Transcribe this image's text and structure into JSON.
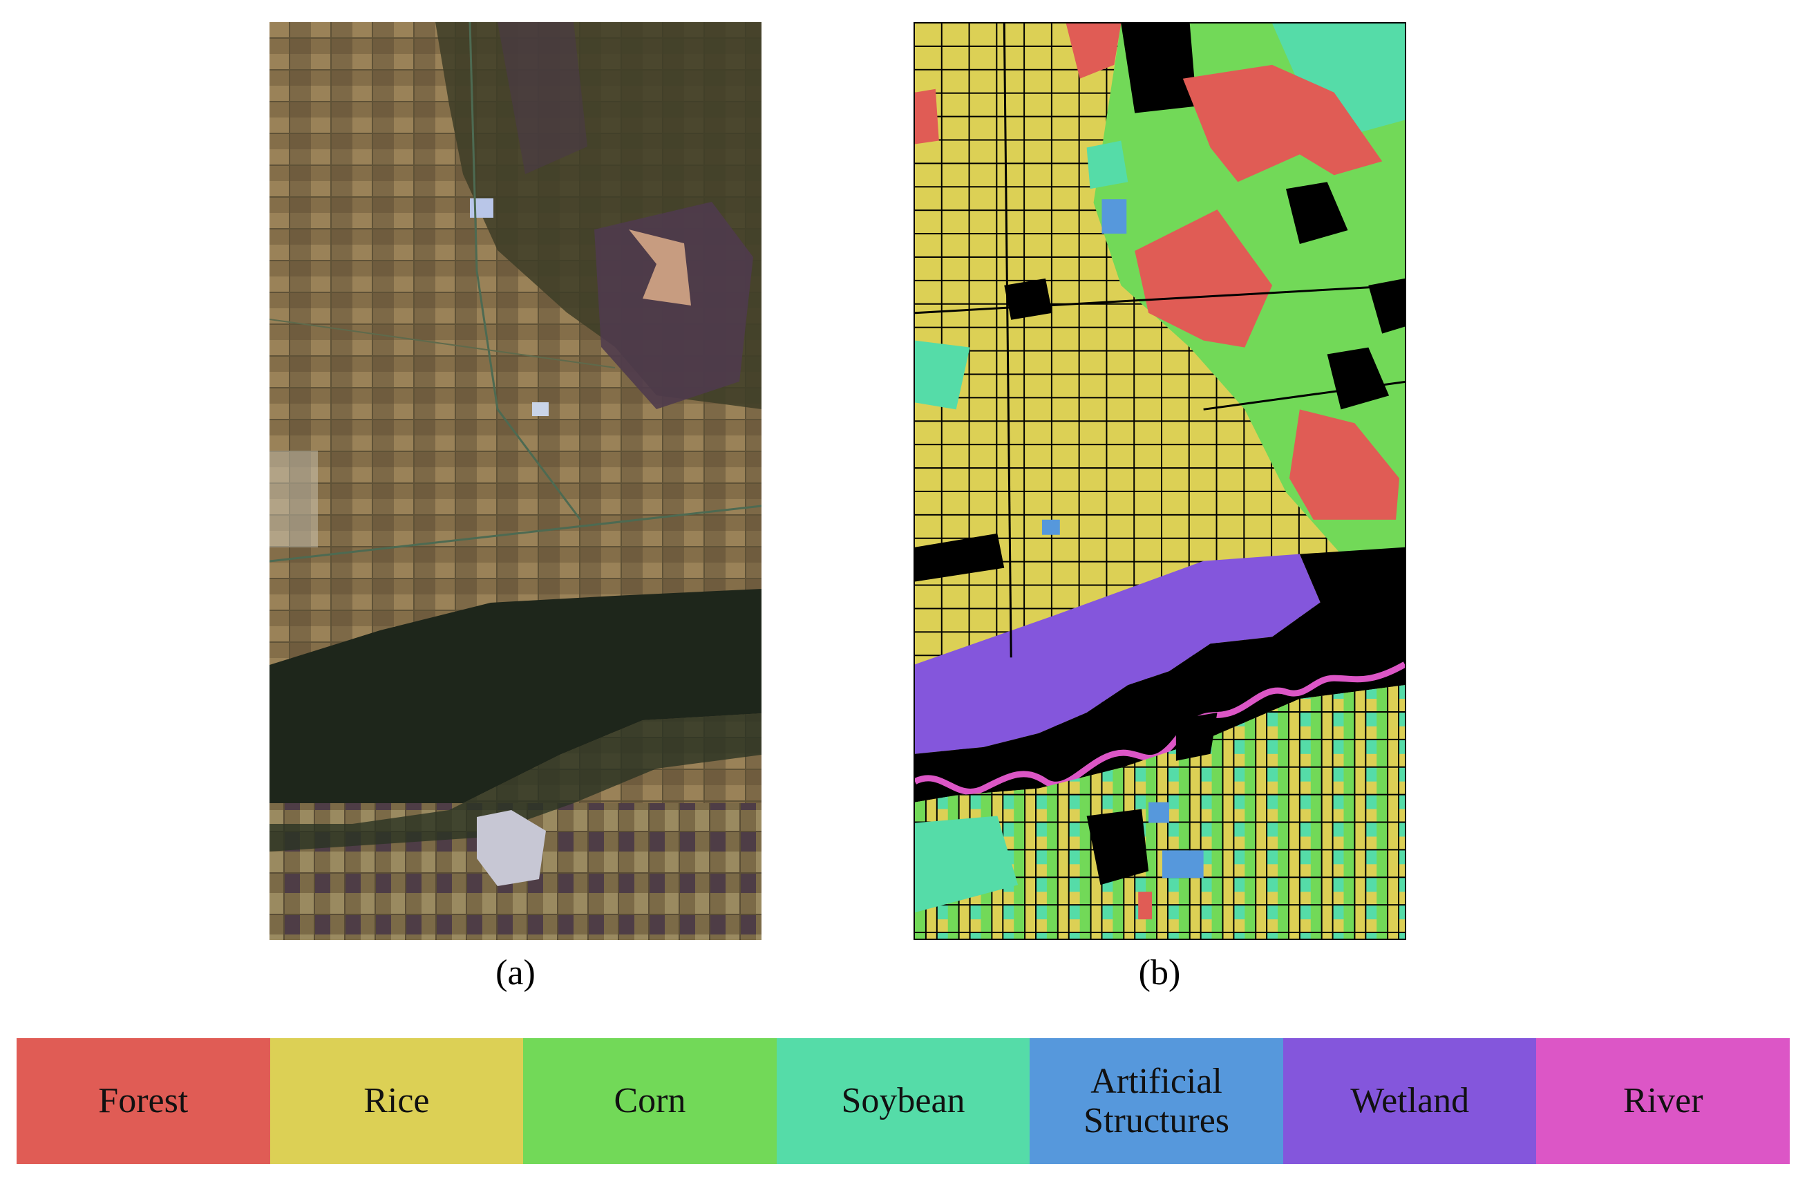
{
  "panels": [
    {
      "id": "a",
      "caption": "(a)",
      "kind": "true-color satellite image"
    },
    {
      "id": "b",
      "caption": "(b)",
      "kind": "land-cover classification map"
    }
  ],
  "legend": [
    {
      "label": "Forest",
      "color": "#e05c55"
    },
    {
      "label": "Rice",
      "color": "#dcd055"
    },
    {
      "label": "Corn",
      "color": "#72d958"
    },
    {
      "label": "Soybean",
      "color": "#55dca8"
    },
    {
      "label": "Artificial Structures",
      "label_lines": [
        "Artificial",
        "Structures"
      ],
      "color": "#5698dc"
    },
    {
      "label": "Wetland",
      "color": "#8456dc"
    },
    {
      "label": "River",
      "color": "#dc56c6"
    }
  ],
  "colors": {
    "background_unlabeled": "#000000",
    "satellite_field_tones": [
      "#7a6644",
      "#8d7550",
      "#5a4a34",
      "#4d3a45",
      "#a08a5c",
      "#3b4a2c",
      "#2a3424"
    ]
  }
}
